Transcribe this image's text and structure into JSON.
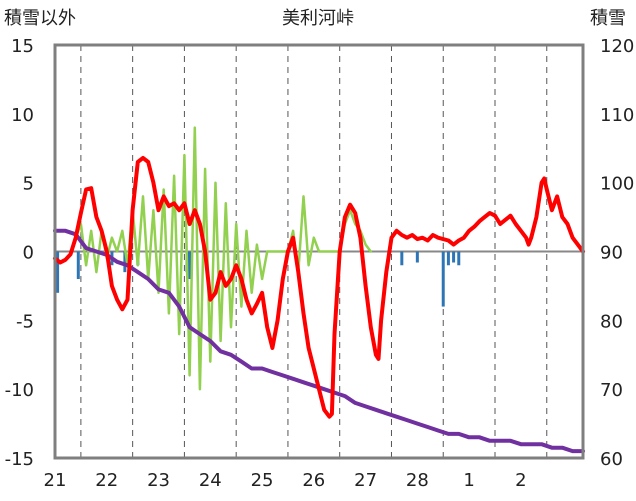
{
  "chart_data": {
    "type": "line",
    "title": "美利河峠",
    "left_axis_label": "積雪以外",
    "right_axis_label": "積雪",
    "left_ticks": [
      "15",
      "10",
      "5",
      "0",
      "-5",
      "-10",
      "-15"
    ],
    "right_ticks": [
      "120",
      "110",
      "100",
      "90",
      "80",
      "70",
      "60"
    ],
    "ylim_left": [
      -15,
      15
    ],
    "ylim_right": [
      60,
      120
    ],
    "x_categories": [
      "21",
      "22",
      "23",
      "24",
      "25",
      "26",
      "27",
      "28",
      "1",
      "2"
    ],
    "x_range": [
      0,
      10.2
    ],
    "grid": "vertical dashed lines at day boundaries",
    "series": [
      {
        "axis": "left",
        "color": "#ff0000",
        "points": [
          [
            0.0,
            -0.5
          ],
          [
            0.1,
            -0.8
          ],
          [
            0.2,
            -0.6
          ],
          [
            0.3,
            -0.2
          ],
          [
            0.4,
            1.0
          ],
          [
            0.5,
            2.8
          ],
          [
            0.6,
            4.5
          ],
          [
            0.7,
            4.6
          ],
          [
            0.8,
            2.5
          ],
          [
            0.9,
            1.5
          ],
          [
            1.0,
            0.0
          ],
          [
            1.1,
            -2.5
          ],
          [
            1.2,
            -3.5
          ],
          [
            1.3,
            -4.2
          ],
          [
            1.4,
            -3.5
          ],
          [
            1.5,
            3.0
          ],
          [
            1.6,
            6.5
          ],
          [
            1.7,
            6.8
          ],
          [
            1.8,
            6.5
          ],
          [
            1.9,
            5.0
          ],
          [
            2.0,
            3.0
          ],
          [
            2.1,
            4.0
          ],
          [
            2.2,
            3.3
          ],
          [
            2.3,
            3.5
          ],
          [
            2.4,
            3.0
          ],
          [
            2.5,
            3.5
          ],
          [
            2.6,
            2.0
          ],
          [
            2.7,
            3.0
          ],
          [
            2.8,
            2.0
          ],
          [
            2.9,
            0.0
          ],
          [
            3.0,
            -3.5
          ],
          [
            3.1,
            -3.0
          ],
          [
            3.2,
            -1.5
          ],
          [
            3.3,
            -2.5
          ],
          [
            3.4,
            -2.0
          ],
          [
            3.5,
            -1.0
          ],
          [
            3.6,
            -2.0
          ],
          [
            3.7,
            -3.5
          ],
          [
            3.8,
            -4.5
          ],
          [
            3.9,
            -3.8
          ],
          [
            4.0,
            -3.0
          ],
          [
            4.1,
            -5.5
          ],
          [
            4.2,
            -7.0
          ],
          [
            4.3,
            -5.0
          ],
          [
            4.4,
            -2.0
          ],
          [
            4.5,
            0.0
          ],
          [
            4.6,
            1.0
          ],
          [
            4.7,
            -1.5
          ],
          [
            4.8,
            -4.5
          ],
          [
            4.9,
            -7.0
          ],
          [
            5.0,
            -8.5
          ],
          [
            5.1,
            -10.0
          ],
          [
            5.2,
            -11.5
          ],
          [
            5.3,
            -12.0
          ],
          [
            5.35,
            -11.8
          ],
          [
            5.4,
            -6.0
          ],
          [
            5.5,
            0.0
          ],
          [
            5.6,
            2.5
          ],
          [
            5.7,
            3.4
          ],
          [
            5.8,
            2.8
          ],
          [
            5.9,
            1.0
          ],
          [
            6.0,
            -2.5
          ],
          [
            6.1,
            -5.5
          ],
          [
            6.2,
            -7.5
          ],
          [
            6.25,
            -7.8
          ],
          [
            6.3,
            -5.0
          ],
          [
            6.4,
            -1.5
          ],
          [
            6.5,
            1.0
          ],
          [
            6.6,
            1.5
          ],
          [
            6.7,
            1.2
          ],
          [
            6.8,
            1.0
          ],
          [
            6.9,
            1.2
          ],
          [
            7.0,
            0.9
          ],
          [
            7.1,
            1.0
          ],
          [
            7.2,
            0.8
          ],
          [
            7.3,
            1.2
          ],
          [
            7.4,
            1.0
          ],
          [
            7.6,
            0.8
          ],
          [
            7.7,
            0.5
          ],
          [
            7.8,
            0.8
          ],
          [
            7.9,
            1.0
          ],
          [
            8.0,
            1.5
          ],
          [
            8.1,
            1.8
          ],
          [
            8.2,
            2.2
          ],
          [
            8.3,
            2.5
          ],
          [
            8.4,
            2.8
          ],
          [
            8.5,
            2.6
          ],
          [
            8.6,
            2.0
          ],
          [
            8.7,
            2.3
          ],
          [
            8.8,
            2.6
          ],
          [
            8.9,
            2.0
          ],
          [
            9.0,
            1.5
          ],
          [
            9.1,
            1.0
          ],
          [
            9.15,
            0.5
          ],
          [
            9.2,
            1.0
          ],
          [
            9.3,
            2.5
          ],
          [
            9.4,
            5.0
          ],
          [
            9.45,
            5.3
          ],
          [
            9.5,
            4.5
          ],
          [
            9.6,
            3.0
          ],
          [
            9.7,
            4.0
          ],
          [
            9.8,
            2.5
          ],
          [
            9.9,
            2.0
          ],
          [
            10.0,
            1.0
          ],
          [
            10.1,
            0.5
          ],
          [
            10.2,
            0.0
          ]
        ]
      },
      {
        "axis": "left",
        "color": "#92d050",
        "points": [
          [
            0.4,
            1.0
          ],
          [
            0.5,
            2.0
          ],
          [
            0.6,
            -1.0
          ],
          [
            0.7,
            1.5
          ],
          [
            0.8,
            -1.5
          ],
          [
            0.9,
            1.5
          ],
          [
            1.0,
            -0.5
          ],
          [
            1.1,
            1.0
          ],
          [
            1.2,
            0.0
          ],
          [
            1.3,
            1.5
          ],
          [
            1.4,
            -1.0
          ],
          [
            1.5,
            3.0
          ],
          [
            1.6,
            -1.0
          ],
          [
            1.7,
            4.0
          ],
          [
            1.8,
            -2.0
          ],
          [
            1.9,
            3.0
          ],
          [
            2.0,
            -3.0
          ],
          [
            2.1,
            4.5
          ],
          [
            2.2,
            -4.5
          ],
          [
            2.3,
            5.5
          ],
          [
            2.4,
            -6.0
          ],
          [
            2.5,
            7.0
          ],
          [
            2.6,
            -9.0
          ],
          [
            2.7,
            9.0
          ],
          [
            2.8,
            -10.0
          ],
          [
            2.9,
            6.0
          ],
          [
            3.0,
            -8.0
          ],
          [
            3.1,
            5.0
          ],
          [
            3.2,
            -6.5
          ],
          [
            3.3,
            3.5
          ],
          [
            3.4,
            -5.5
          ],
          [
            3.5,
            2.0
          ],
          [
            3.6,
            -4.0
          ],
          [
            3.7,
            1.5
          ],
          [
            3.8,
            -3.0
          ],
          [
            3.9,
            0.5
          ],
          [
            4.0,
            -2.0
          ],
          [
            4.1,
            0.0
          ],
          [
            4.5,
            0.0
          ],
          [
            4.6,
            1.5
          ],
          [
            4.7,
            -1.5
          ],
          [
            4.8,
            4.0
          ],
          [
            4.9,
            -1.0
          ],
          [
            5.0,
            1.0
          ],
          [
            5.1,
            0.0
          ],
          [
            5.5,
            0.0
          ],
          [
            5.6,
            2.0
          ],
          [
            5.7,
            3.0
          ],
          [
            5.8,
            2.0
          ],
          [
            5.9,
            1.5
          ],
          [
            6.0,
            0.5
          ],
          [
            6.1,
            0.0
          ]
        ]
      },
      {
        "axis": "right",
        "color": "#7030a0",
        "points": [
          [
            0.0,
            93.0
          ],
          [
            0.2,
            93.0
          ],
          [
            0.4,
            92.5
          ],
          [
            0.6,
            90.5
          ],
          [
            0.8,
            90.0
          ],
          [
            1.0,
            89.5
          ],
          [
            1.2,
            88.5
          ],
          [
            1.4,
            88.0
          ],
          [
            1.6,
            87.0
          ],
          [
            1.8,
            86.0
          ],
          [
            2.0,
            84.5
          ],
          [
            2.2,
            84.0
          ],
          [
            2.4,
            82.0
          ],
          [
            2.6,
            79.0
          ],
          [
            2.8,
            78.0
          ],
          [
            3.0,
            77.0
          ],
          [
            3.2,
            75.5
          ],
          [
            3.4,
            75.0
          ],
          [
            3.6,
            74.0
          ],
          [
            3.8,
            73.0
          ],
          [
            4.0,
            73.0
          ],
          [
            4.2,
            72.5
          ],
          [
            4.4,
            72.0
          ],
          [
            4.6,
            71.5
          ],
          [
            4.8,
            71.0
          ],
          [
            5.0,
            70.5
          ],
          [
            5.2,
            70.0
          ],
          [
            5.4,
            69.5
          ],
          [
            5.6,
            69.0
          ],
          [
            5.8,
            68.0
          ],
          [
            6.0,
            67.5
          ],
          [
            6.2,
            67.0
          ],
          [
            6.4,
            66.5
          ],
          [
            6.6,
            66.0
          ],
          [
            6.8,
            65.5
          ],
          [
            7.0,
            65.0
          ],
          [
            7.2,
            64.5
          ],
          [
            7.4,
            64.0
          ],
          [
            7.6,
            63.5
          ],
          [
            7.8,
            63.5
          ],
          [
            8.0,
            63.0
          ],
          [
            8.2,
            63.0
          ],
          [
            8.4,
            62.5
          ],
          [
            8.6,
            62.5
          ],
          [
            8.8,
            62.5
          ],
          [
            9.0,
            62.0
          ],
          [
            9.2,
            62.0
          ],
          [
            9.4,
            62.0
          ],
          [
            9.6,
            61.5
          ],
          [
            9.8,
            61.5
          ],
          [
            10.0,
            61.0
          ],
          [
            10.2,
            61.0
          ]
        ]
      }
    ],
    "bars": {
      "axis": "left",
      "color": "#2e75b6",
      "points": [
        [
          0.05,
          -3.0
        ],
        [
          0.45,
          -2.0
        ],
        [
          1.1,
          -1.0
        ],
        [
          1.35,
          -1.5
        ],
        [
          1.6,
          -1.0
        ],
        [
          2.55,
          -1.5
        ],
        [
          2.6,
          -2.0
        ],
        [
          6.7,
          -1.0
        ],
        [
          7.0,
          -0.8
        ],
        [
          7.5,
          -4.0
        ],
        [
          7.6,
          -1.0
        ],
        [
          7.7,
          -0.8
        ],
        [
          7.8,
          -1.0
        ]
      ]
    }
  }
}
